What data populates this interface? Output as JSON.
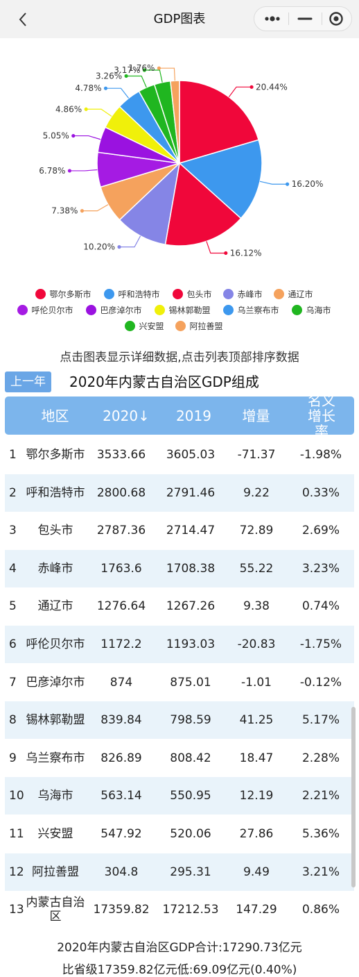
{
  "nav": {
    "title": "GDP图表"
  },
  "chart_data": {
    "type": "pie",
    "title": "",
    "slices": [
      {
        "name": "鄂尔多斯市",
        "label": "20.44%",
        "value": 20.44,
        "color": "#f0073a"
      },
      {
        "name": "呼和浩特市",
        "label": "16.20%",
        "value": 16.2,
        "color": "#3d98ee"
      },
      {
        "name": "包头市",
        "label": "16.12%",
        "value": 16.12,
        "color": "#f0073a"
      },
      {
        "name": "赤峰市",
        "label": "10.20%",
        "value": 10.2,
        "color": "#8585e6"
      },
      {
        "name": "通辽市",
        "label": "7.38%",
        "value": 7.38,
        "color": "#f5a25d"
      },
      {
        "name": "呼伦贝尔市",
        "label": "6.78%",
        "value": 6.78,
        "color": "#a51be3"
      },
      {
        "name": "巴彦淖尔市",
        "label": "5.05%",
        "value": 5.05,
        "color": "#9a12e0"
      },
      {
        "name": "锡林郭勒盟",
        "label": "4.86%",
        "value": 4.86,
        "color": "#f0f00a"
      },
      {
        "name": "乌兰察布市",
        "label": "4.78%",
        "value": 4.78,
        "color": "#3d98ee"
      },
      {
        "name": "乌海市",
        "label": "3.26%",
        "value": 3.26,
        "color": "#20b620"
      },
      {
        "name": "兴安盟",
        "label": "3.17%",
        "value": 3.17,
        "color": "#20b620"
      },
      {
        "name": "阿拉善盟",
        "label": "1.76%",
        "value": 1.76,
        "color": "#f5a25d"
      }
    ],
    "legend": "bottom"
  },
  "hint": "点击图表显示详细数据,点击列表顶部排序数据",
  "prev_year_label": "上一年",
  "table_title": "2020年内蒙古自治区GDP组成",
  "table": {
    "headers": {
      "region": "地区",
      "y2020": "2020↓",
      "y2019": "2019",
      "delta": "增量",
      "growth": "名义增长率"
    },
    "rows": [
      {
        "idx": "1",
        "region": "鄂尔多斯市",
        "y2020": "3533.66",
        "y2019": "3605.03",
        "delta": "-71.37",
        "growth": "-1.98%"
      },
      {
        "idx": "2",
        "region": "呼和浩特市",
        "y2020": "2800.68",
        "y2019": "2791.46",
        "delta": "9.22",
        "growth": "0.33%"
      },
      {
        "idx": "3",
        "region": "包头市",
        "y2020": "2787.36",
        "y2019": "2714.47",
        "delta": "72.89",
        "growth": "2.69%"
      },
      {
        "idx": "4",
        "region": "赤峰市",
        "y2020": "1763.6",
        "y2019": "1708.38",
        "delta": "55.22",
        "growth": "3.23%"
      },
      {
        "idx": "5",
        "region": "通辽市",
        "y2020": "1276.64",
        "y2019": "1267.26",
        "delta": "9.38",
        "growth": "0.74%"
      },
      {
        "idx": "6",
        "region": "呼伦贝尔市",
        "y2020": "1172.2",
        "y2019": "1193.03",
        "delta": "-20.83",
        "growth": "-1.75%"
      },
      {
        "idx": "7",
        "region": "巴彦淖尔市",
        "y2020": "874",
        "y2019": "875.01",
        "delta": "-1.01",
        "growth": "-0.12%"
      },
      {
        "idx": "8",
        "region": "锡林郭勒盟",
        "y2020": "839.84",
        "y2019": "798.59",
        "delta": "41.25",
        "growth": "5.17%"
      },
      {
        "idx": "9",
        "region": "乌兰察布市",
        "y2020": "826.89",
        "y2019": "808.42",
        "delta": "18.47",
        "growth": "2.28%"
      },
      {
        "idx": "10",
        "region": "乌海市",
        "y2020": "563.14",
        "y2019": "550.95",
        "delta": "12.19",
        "growth": "2.21%"
      },
      {
        "idx": "11",
        "region": "兴安盟",
        "y2020": "547.92",
        "y2019": "520.06",
        "delta": "27.86",
        "growth": "5.36%"
      },
      {
        "idx": "12",
        "region": "阿拉善盟",
        "y2020": "304.8",
        "y2019": "295.31",
        "delta": "9.49",
        "growth": "3.21%"
      },
      {
        "idx": "13",
        "region": "内蒙古自治区",
        "y2020": "17359.82",
        "y2019": "17212.53",
        "delta": "147.29",
        "growth": "0.86%"
      }
    ]
  },
  "footer": {
    "line1": "2020年内蒙古自治区GDP合计:17290.73亿元",
    "line2": "比省级17359.82亿元低:69.09亿元(0.40%)"
  },
  "icons": {
    "back": "chevron-left-icon",
    "more": "more-dots-icon",
    "minimize": "minimize-icon",
    "close": "target-close-icon"
  }
}
